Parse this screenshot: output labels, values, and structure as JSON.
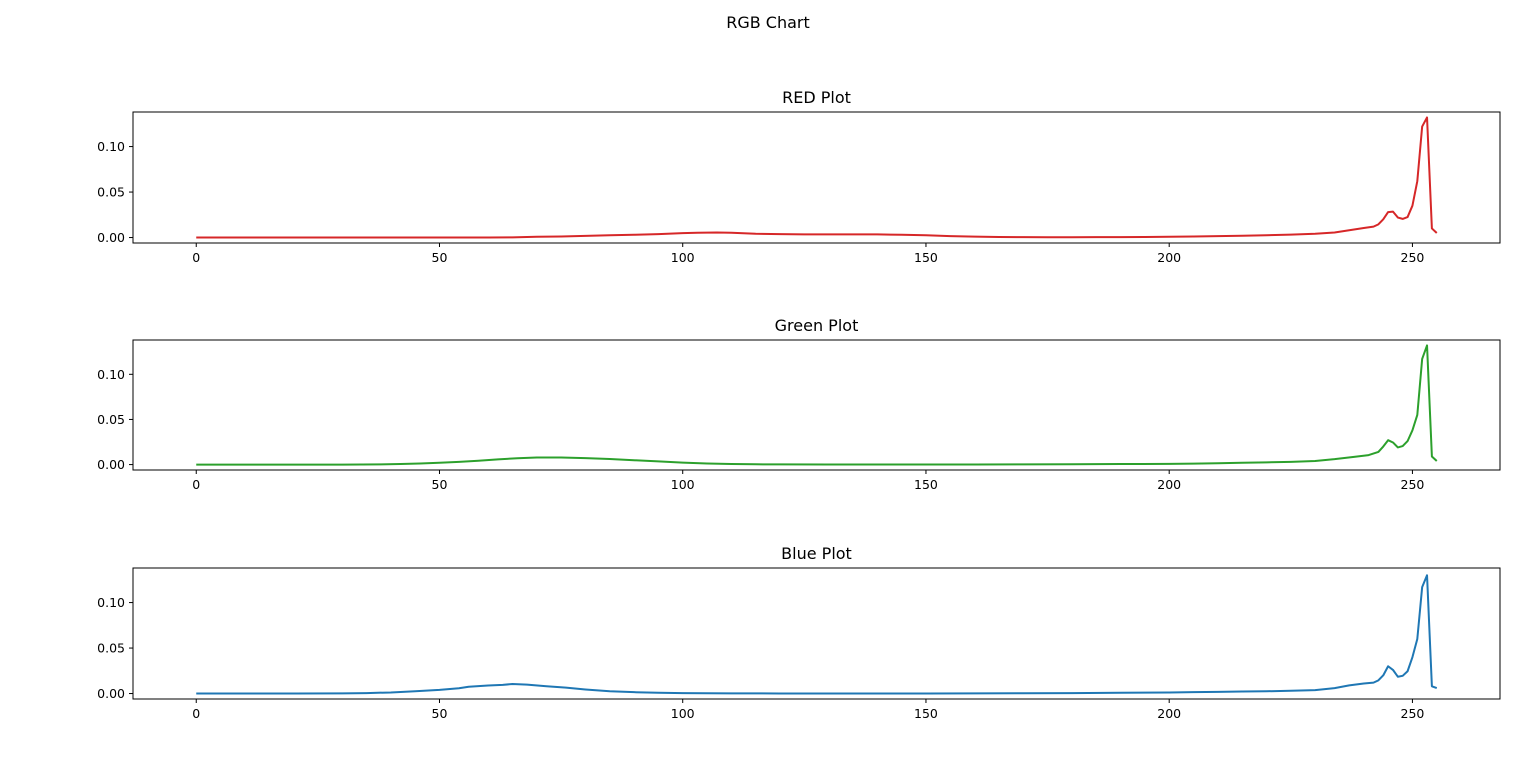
{
  "figure": {
    "title": "RGB Chart"
  },
  "chart_data": [
    {
      "type": "line",
      "title": "RED Plot",
      "color": "#d62728",
      "xlim": [
        -13,
        268
      ],
      "ylim": [
        -0.006,
        0.138
      ],
      "xticks": [
        0,
        50,
        100,
        150,
        200,
        250
      ],
      "yticks": [
        0.0,
        0.05,
        0.1
      ],
      "ytick_labels": [
        "0.00",
        "0.05",
        "0.10"
      ],
      "grid": false,
      "series": [
        {
          "points": [
            [
              0,
              0.0
            ],
            [
              10,
              0.0
            ],
            [
              20,
              0.0
            ],
            [
              30,
              0.0
            ],
            [
              40,
              0.0
            ],
            [
              50,
              0.0
            ],
            [
              60,
              0.0
            ],
            [
              65,
              0.0002
            ],
            [
              70,
              0.0008
            ],
            [
              75,
              0.0012
            ],
            [
              80,
              0.0018
            ],
            [
              85,
              0.0025
            ],
            [
              90,
              0.003
            ],
            [
              95,
              0.0038
            ],
            [
              100,
              0.0048
            ],
            [
              103,
              0.0052
            ],
            [
              107,
              0.0055
            ],
            [
              110,
              0.0052
            ],
            [
              115,
              0.0042
            ],
            [
              120,
              0.0038
            ],
            [
              125,
              0.0035
            ],
            [
              130,
              0.0035
            ],
            [
              135,
              0.0035
            ],
            [
              140,
              0.0035
            ],
            [
              145,
              0.003
            ],
            [
              150,
              0.0025
            ],
            [
              155,
              0.0015
            ],
            [
              160,
              0.001
            ],
            [
              165,
              0.0006
            ],
            [
              170,
              0.0004
            ],
            [
              175,
              0.0003
            ],
            [
              180,
              0.0003
            ],
            [
              185,
              0.0004
            ],
            [
              190,
              0.0005
            ],
            [
              195,
              0.0006
            ],
            [
              200,
              0.0008
            ],
            [
              205,
              0.0011
            ],
            [
              210,
              0.0015
            ],
            [
              215,
              0.002
            ],
            [
              220,
              0.0025
            ],
            [
              225,
              0.0032
            ],
            [
              230,
              0.0042
            ],
            [
              234,
              0.0055
            ],
            [
              237,
              0.008
            ],
            [
              240,
              0.0105
            ],
            [
              242,
              0.012
            ],
            [
              243,
              0.0145
            ],
            [
              244,
              0.02
            ],
            [
              245,
              0.028
            ],
            [
              246,
              0.0285
            ],
            [
              247,
              0.022
            ],
            [
              248,
              0.0205
            ],
            [
              249,
              0.0225
            ],
            [
              250,
              0.035
            ],
            [
              251,
              0.062
            ],
            [
              252,
              0.122
            ],
            [
              253,
              0.132
            ],
            [
              254,
              0.01
            ],
            [
              255,
              0.005
            ]
          ]
        }
      ]
    },
    {
      "type": "line",
      "title": "Green Plot",
      "color": "#2ca02c",
      "xlim": [
        -13,
        268
      ],
      "ylim": [
        -0.006,
        0.138
      ],
      "xticks": [
        0,
        50,
        100,
        150,
        200,
        250
      ],
      "yticks": [
        0.0,
        0.05,
        0.1
      ],
      "ytick_labels": [
        "0.00",
        "0.05",
        "0.10"
      ],
      "grid": false,
      "series": [
        {
          "points": [
            [
              0,
              0.0
            ],
            [
              10,
              0.0
            ],
            [
              20,
              0.0
            ],
            [
              30,
              0.0
            ],
            [
              38,
              0.0002
            ],
            [
              42,
              0.0006
            ],
            [
              46,
              0.0012
            ],
            [
              50,
              0.002
            ],
            [
              54,
              0.003
            ],
            [
              58,
              0.0042
            ],
            [
              62,
              0.0058
            ],
            [
              66,
              0.007
            ],
            [
              70,
              0.0078
            ],
            [
              75,
              0.0078
            ],
            [
              80,
              0.0072
            ],
            [
              85,
              0.0062
            ],
            [
              90,
              0.0048
            ],
            [
              95,
              0.0035
            ],
            [
              100,
              0.0022
            ],
            [
              105,
              0.0012
            ],
            [
              110,
              0.0006
            ],
            [
              115,
              0.0003
            ],
            [
              120,
              0.0002
            ],
            [
              130,
              0.0001
            ],
            [
              140,
              0.0001
            ],
            [
              150,
              0.0001
            ],
            [
              160,
              0.0001
            ],
            [
              170,
              0.0002
            ],
            [
              180,
              0.0003
            ],
            [
              190,
              0.0006
            ],
            [
              200,
              0.0008
            ],
            [
              205,
              0.001
            ],
            [
              210,
              0.0015
            ],
            [
              215,
              0.002
            ],
            [
              220,
              0.0025
            ],
            [
              225,
              0.003
            ],
            [
              230,
              0.004
            ],
            [
              234,
              0.006
            ],
            [
              238,
              0.0085
            ],
            [
              241,
              0.0105
            ],
            [
              243,
              0.014
            ],
            [
              244,
              0.02
            ],
            [
              245,
              0.027
            ],
            [
              246,
              0.0245
            ],
            [
              247,
              0.019
            ],
            [
              248,
              0.0205
            ],
            [
              249,
              0.026
            ],
            [
              250,
              0.038
            ],
            [
              251,
              0.055
            ],
            [
              252,
              0.117
            ],
            [
              253,
              0.132
            ],
            [
              254,
              0.009
            ],
            [
              255,
              0.004
            ]
          ]
        }
      ]
    },
    {
      "type": "line",
      "title": "Blue Plot",
      "color": "#1f77b4",
      "xlim": [
        -13,
        268
      ],
      "ylim": [
        -0.006,
        0.138
      ],
      "xticks": [
        0,
        50,
        100,
        150,
        200,
        250
      ],
      "yticks": [
        0.0,
        0.05,
        0.1
      ],
      "ytick_labels": [
        "0.00",
        "0.05",
        "0.10"
      ],
      "grid": false,
      "series": [
        {
          "points": [
            [
              0,
              0.0
            ],
            [
              10,
              0.0
            ],
            [
              20,
              0.0
            ],
            [
              30,
              0.0002
            ],
            [
              35,
              0.0005
            ],
            [
              40,
              0.0012
            ],
            [
              45,
              0.0025
            ],
            [
              50,
              0.004
            ],
            [
              54,
              0.0058
            ],
            [
              56,
              0.0075
            ],
            [
              60,
              0.0088
            ],
            [
              63,
              0.0095
            ],
            [
              65,
              0.0105
            ],
            [
              68,
              0.0098
            ],
            [
              72,
              0.008
            ],
            [
              76,
              0.0065
            ],
            [
              80,
              0.0045
            ],
            [
              85,
              0.0025
            ],
            [
              90,
              0.0015
            ],
            [
              95,
              0.0008
            ],
            [
              100,
              0.0005
            ],
            [
              110,
              0.0002
            ],
            [
              120,
              0.0001
            ],
            [
              130,
              0.0001
            ],
            [
              140,
              0.0001
            ],
            [
              150,
              0.0001
            ],
            [
              160,
              0.0002
            ],
            [
              170,
              0.0003
            ],
            [
              180,
              0.0005
            ],
            [
              190,
              0.0008
            ],
            [
              200,
              0.0012
            ],
            [
              205,
              0.0015
            ],
            [
              210,
              0.0018
            ],
            [
              215,
              0.0022
            ],
            [
              220,
              0.0025
            ],
            [
              225,
              0.003
            ],
            [
              230,
              0.0038
            ],
            [
              234,
              0.006
            ],
            [
              237,
              0.009
            ],
            [
              240,
              0.011
            ],
            [
              242,
              0.012
            ],
            [
              243,
              0.0145
            ],
            [
              244,
              0.02
            ],
            [
              245,
              0.03
            ],
            [
              246,
              0.026
            ],
            [
              247,
              0.0185
            ],
            [
              248,
              0.0195
            ],
            [
              249,
              0.0245
            ],
            [
              250,
              0.04
            ],
            [
              251,
              0.06
            ],
            [
              252,
              0.117
            ],
            [
              253,
              0.13
            ],
            [
              254,
              0.008
            ],
            [
              255,
              0.006
            ]
          ]
        }
      ]
    }
  ]
}
